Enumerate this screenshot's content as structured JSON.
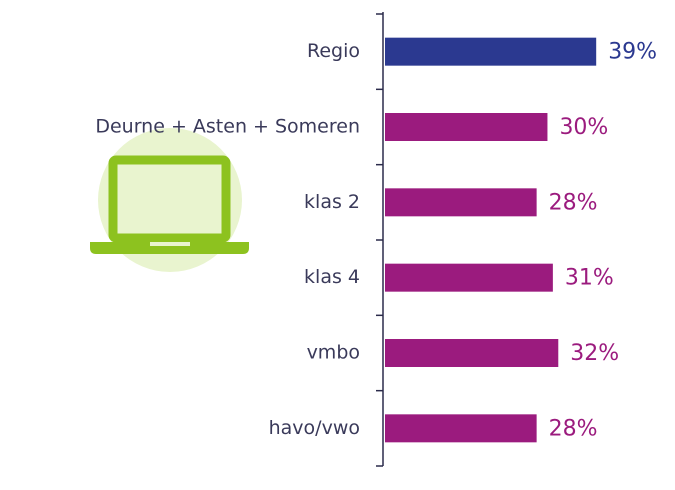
{
  "chart_data": {
    "type": "bar",
    "orientation": "horizontal",
    "categories": [
      "Regio",
      "Deurne + Asten + Someren",
      "klas 2",
      "klas 4",
      "vmbo",
      "havo/vwo"
    ],
    "values": [
      39,
      30,
      28,
      31,
      32,
      28
    ],
    "value_labels": [
      "39%",
      "30%",
      "28%",
      "31%",
      "32%",
      "28%"
    ],
    "colors": [
      "#2b3990",
      "#9b1b7e",
      "#9b1b7e",
      "#9b1b7e",
      "#9b1b7e",
      "#9b1b7e"
    ],
    "xlim": [
      0,
      53
    ]
  }
}
